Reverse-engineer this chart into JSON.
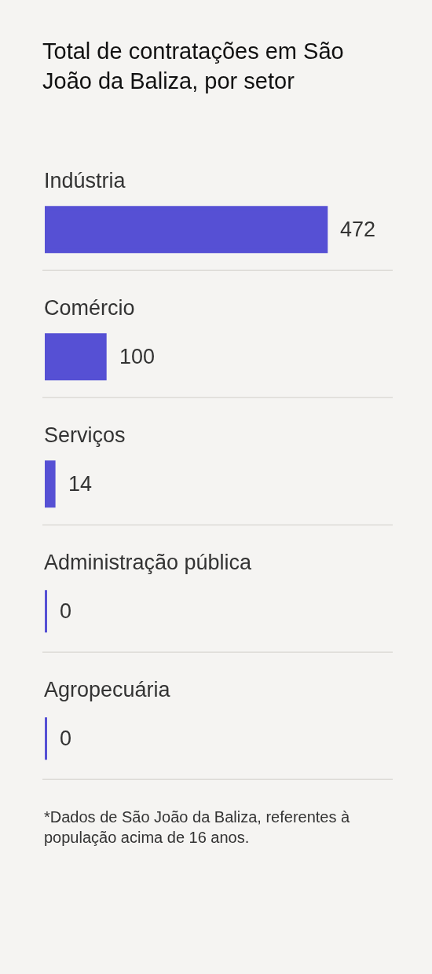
{
  "chart_data": {
    "type": "bar",
    "orientation": "horizontal",
    "title": "Total de contratações em São João da Baliza, por setor",
    "categories": [
      "Indústria",
      "Comércio",
      "Serviços",
      "Administração pública",
      "Agropecuária"
    ],
    "values": [
      472,
      100,
      14,
      0,
      0
    ],
    "color": "#5650d4",
    "data_labels": true,
    "grid": "y",
    "annotations": [
      "*Dados de São João da Baliza, referentes à população acima de 16 anos."
    ]
  }
}
